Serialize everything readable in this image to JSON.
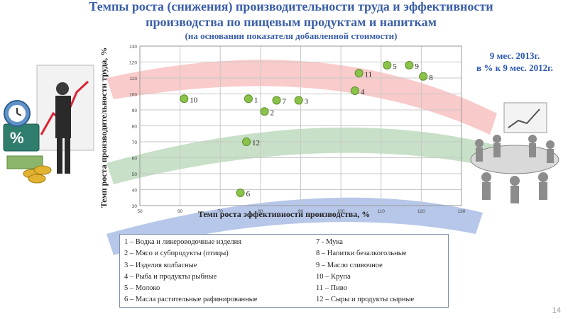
{
  "title_line1": "Темпы роста (снижения) производительности труда и эффективности",
  "title_line2": "производства по пищевым продуктам и напиткам",
  "title_line3": "(на основании показателя добавленной стоимости)",
  "side_note_line1": "9 мес. 2013г.",
  "side_note_line2": "в % к 9 мес. 2012г.",
  "page_number": "14",
  "colors": {
    "title": "#3b5fa8",
    "point": "#8bc34a",
    "point_edge": "#5a8f29"
  },
  "chart_data": {
    "type": "scatter",
    "xlabel": "Темп роста эффективности производства, %",
    "ylabel": "Темп роста производительности труда, %",
    "xlim": [
      50,
      130
    ],
    "ylim": [
      30,
      130
    ],
    "x_ticks": [
      50,
      60,
      70,
      80,
      90,
      100,
      110,
      120,
      130
    ],
    "y_ticks": [
      30,
      40,
      50,
      60,
      70,
      80,
      90,
      100,
      110,
      120,
      130
    ],
    "grid": true,
    "points": [
      {
        "label": "1",
        "x": 77,
        "y": 97
      },
      {
        "label": "2",
        "x": 81,
        "y": 89
      },
      {
        "label": "3",
        "x": 89.5,
        "y": 96
      },
      {
        "label": "4",
        "x": 103.5,
        "y": 102
      },
      {
        "label": "5",
        "x": 111.5,
        "y": 118
      },
      {
        "label": "6",
        "x": 75,
        "y": 38
      },
      {
        "label": "7",
        "x": 84,
        "y": 96
      },
      {
        "label": "8",
        "x": 120.5,
        "y": 111
      },
      {
        "label": "9",
        "x": 117,
        "y": 118
      },
      {
        "label": "10",
        "x": 61,
        "y": 97
      },
      {
        "label": "11",
        "x": 104.5,
        "y": 113
      },
      {
        "label": "12",
        "x": 76.5,
        "y": 70
      }
    ]
  },
  "legend": {
    "left": [
      "1 – Водка и ликероводочные изделия",
      "2 – Мясо и субпродукты (птицы)",
      "3 – Изделия колбасные",
      "4 – Рыба и продукты рыбные",
      "5 – Молоко",
      "6 – Масла растительные рафинированные"
    ],
    "right": [
      "7 - Мука",
      "8 – Напитки безалкогольные",
      "9 – Масло сливочное",
      "10 – Крупа",
      "11 – Пиво",
      "12 – Сыры и продукты сырные"
    ]
  }
}
